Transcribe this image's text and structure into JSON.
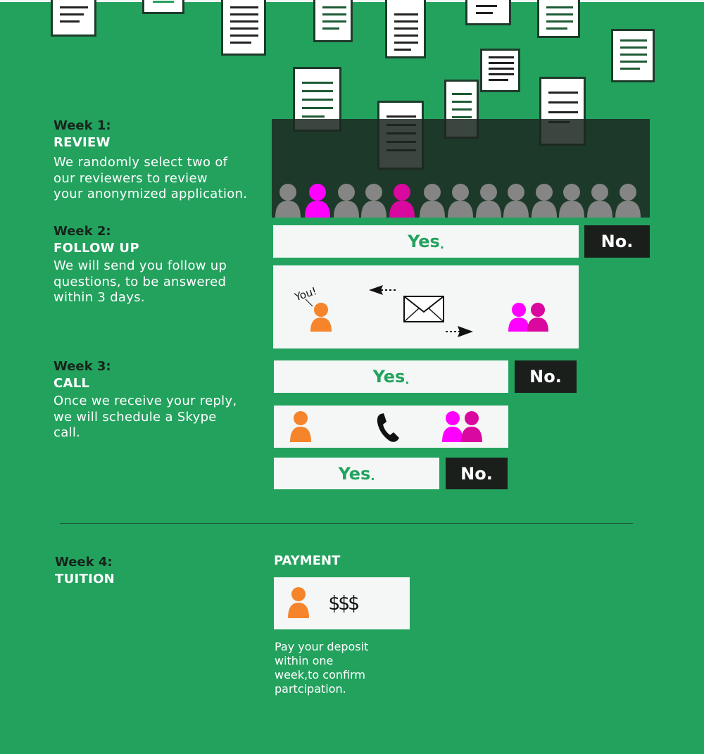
{
  "steps": [
    {
      "week": "Week 1:",
      "title": "REVIEW",
      "lines": [
        "We randomly select two of",
        "our reviewers to review",
        "your anonymized application."
      ]
    },
    {
      "week": "Week 2:",
      "title": "FOLLOW UP",
      "lines": [
        "We will send you follow up",
        "questions, to be answered",
        "within 3 days."
      ]
    },
    {
      "week": "Week 3:",
      "title": "CALL",
      "lines": [
        "Once we receive your reply,",
        "we will schedule a Skype",
        "call."
      ]
    },
    {
      "week": "Week 4:",
      "title": "TUITION"
    }
  ],
  "decisions": {
    "yes": "Yes",
    "dot": ".",
    "no": "No."
  },
  "followup_panel": {
    "you_label": "You!"
  },
  "payment": {
    "label": "PAYMENT",
    "amount": "$$$",
    "lines": [
      "Pay your deposit",
      "within one",
      "week,to confirm",
      "partcipation."
    ]
  },
  "colors": {
    "background": "#23a25e",
    "applicant": "#f5842b",
    "reviewer": "#ff00ff",
    "crowd": "#858585",
    "panel": "#f4f7f5",
    "dark": "#1a1f1c"
  }
}
